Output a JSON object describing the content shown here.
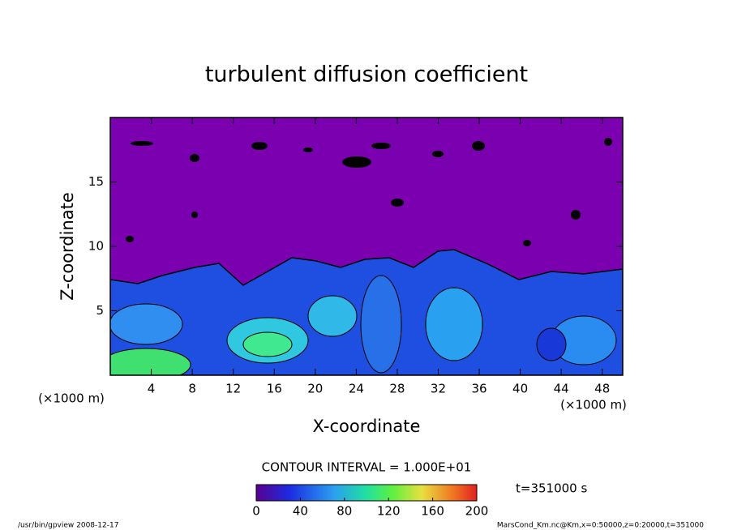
{
  "chart_data": {
    "type": "contour",
    "title": "turbulent diffusion coefficient",
    "x_label": "X-coordinate",
    "y_label": "Z-coordinate",
    "x_unit_label": "(×1000 m)",
    "y_unit_label": "(×1000 m)",
    "xlim": [
      0,
      50
    ],
    "xticks": [
      4,
      8,
      12,
      16,
      20,
      24,
      28,
      32,
      36,
      40,
      44,
      48
    ],
    "ylim": [
      0,
      20
    ],
    "yticks": [
      5,
      10,
      15
    ],
    "contour_interval_label": "CONTOUR INTERVAL = 1.000E+01",
    "colorbar": {
      "lim": [
        0,
        200
      ],
      "ticks": [
        0,
        40,
        80,
        120,
        160,
        200
      ]
    },
    "time_label": "t=351000 s"
  },
  "footer": {
    "left": "/usr/bin/gpview  2008-12-17",
    "right": "MarsCond_Km.nc@Km,x=0:50000,z=0:20000,t=351000"
  }
}
